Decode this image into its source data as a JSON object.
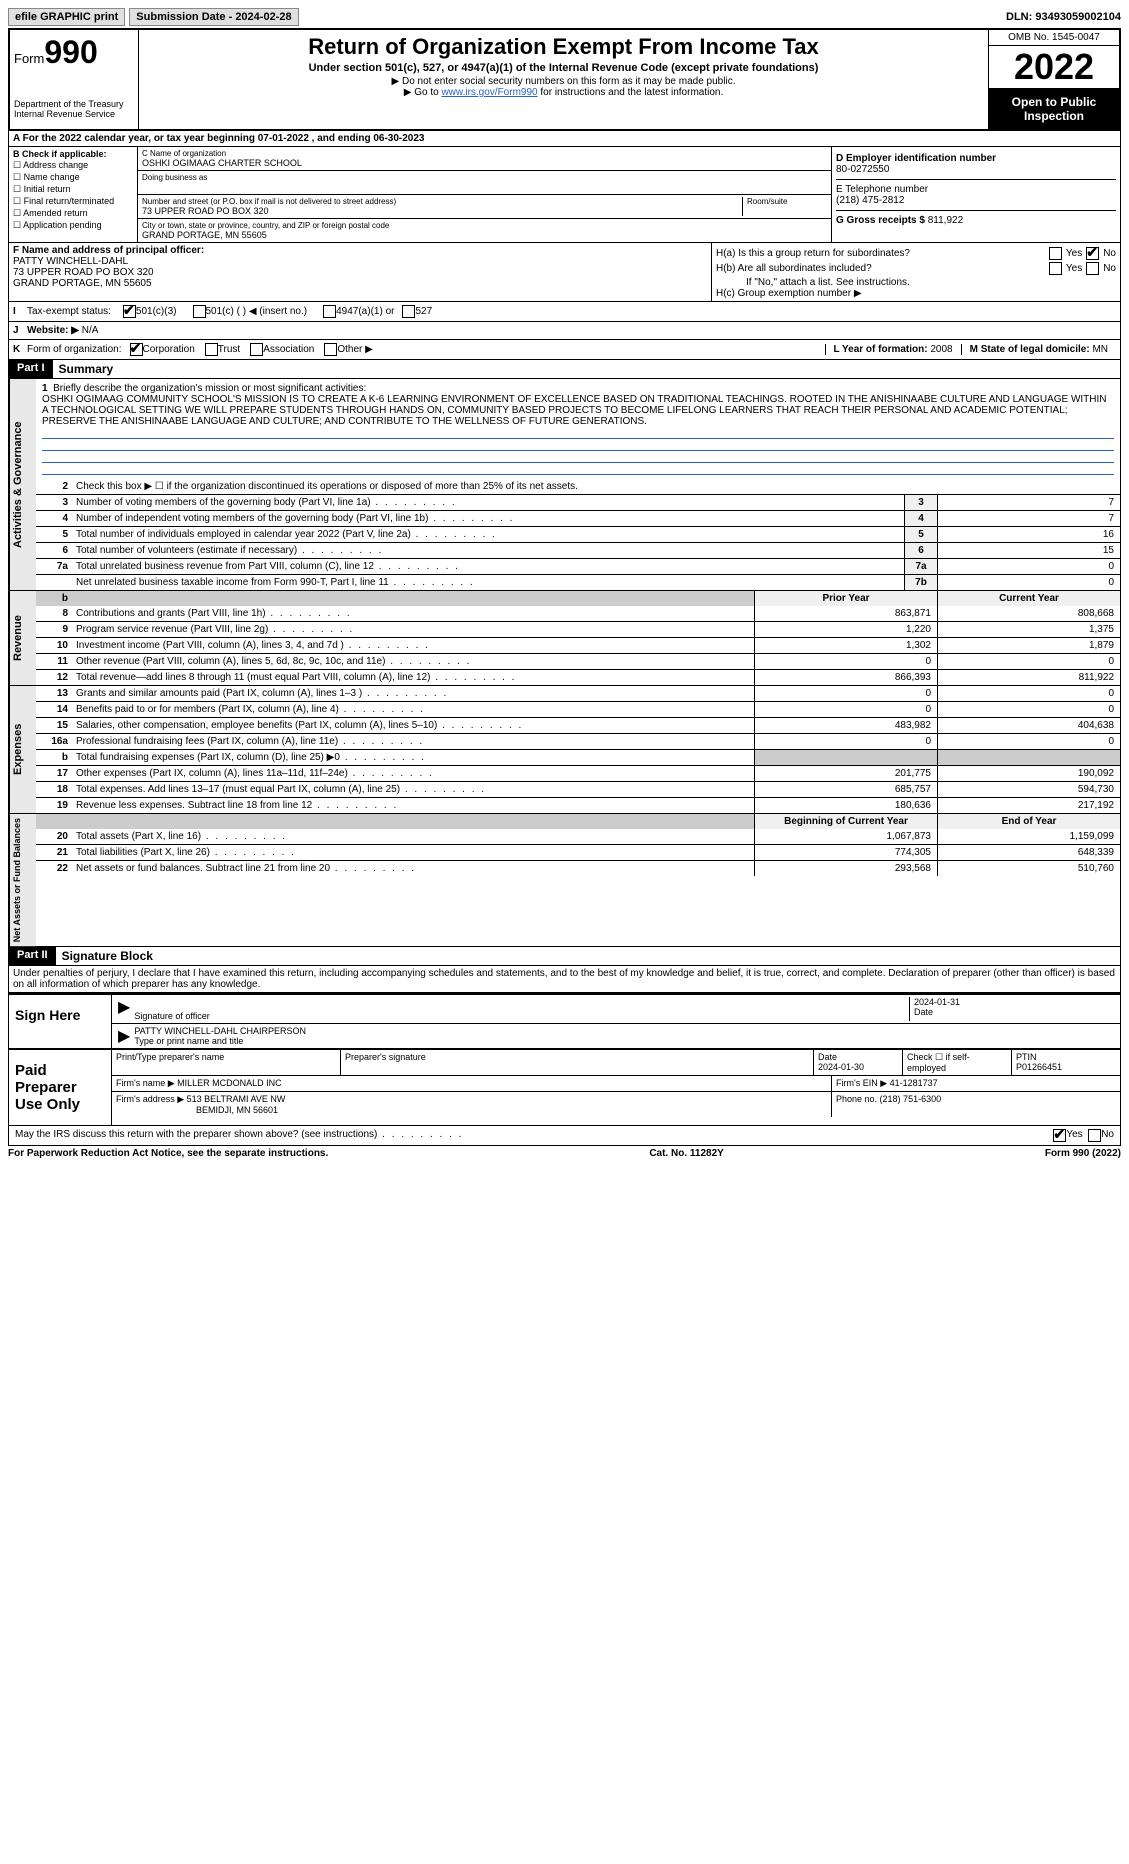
{
  "topbar": {
    "efile": "efile GRAPHIC print",
    "submission_label": "Submission Date - 2024-02-28",
    "dln": "DLN: 93493059002104"
  },
  "header": {
    "form_prefix": "Form",
    "form_num": "990",
    "dept": "Department of the Treasury\nInternal Revenue Service",
    "title": "Return of Organization Exempt From Income Tax",
    "subtitle": "Under section 501(c), 527, or 4947(a)(1) of the Internal Revenue Code (except private foundations)",
    "note1": "▶ Do not enter social security numbers on this form as it may be made public.",
    "note2_pre": "▶ Go to ",
    "note2_link": "www.irs.gov/Form990",
    "note2_post": " for instructions and the latest information.",
    "omb": "OMB No. 1545-0047",
    "year": "2022",
    "open": "Open to Public Inspection"
  },
  "period": {
    "text_a": "For the 2022 calendar year, or tax year beginning ",
    "begin": "07-01-2022",
    "text_b": "  , and ending ",
    "end": "06-30-2023"
  },
  "blockB": {
    "label": "B Check if applicable:",
    "opts": [
      "Address change",
      "Name change",
      "Initial return",
      "Final return/terminated",
      "Amended return",
      "Application pending"
    ]
  },
  "blockC": {
    "name_label": "C Name of organization",
    "name": "OSHKI OGIMAAG CHARTER SCHOOL",
    "dba_label": "Doing business as",
    "street_label": "Number and street (or P.O. box if mail is not delivered to street address)",
    "room_label": "Room/suite",
    "street": "73 UPPER ROAD PO BOX 320",
    "city_label": "City or town, state or province, country, and ZIP or foreign postal code",
    "city": "GRAND PORTAGE, MN  55605"
  },
  "blockD": {
    "ein_label": "D Employer identification number",
    "ein": "80-0272550",
    "tel_label": "E Telephone number",
    "tel": "(218) 475-2812",
    "gross_label": "G Gross receipts $ ",
    "gross": "811,922"
  },
  "blockF": {
    "label": "F  Name and address of principal officer:",
    "name": "PATTY WINCHELL-DAHL",
    "addr1": "73 UPPER ROAD PO BOX 320",
    "addr2": "GRAND PORTAGE, MN  55605"
  },
  "blockH": {
    "a": "H(a)  Is this a group return for subordinates?",
    "b": "H(b)  Are all subordinates included?",
    "bnote": "If \"No,\" attach a list. See instructions.",
    "c": "H(c)  Group exemption number ▶",
    "yes": "Yes",
    "no": "No"
  },
  "status": {
    "i": "I",
    "label": "Tax-exempt status:",
    "o1": "501(c)(3)",
    "o2": "501(c) (  ) ◀ (insert no.)",
    "o3": "4947(a)(1) or",
    "o4": "527"
  },
  "web": {
    "j": "J",
    "label": "Website: ▶",
    "val": "N/A"
  },
  "korg": {
    "k": "K",
    "label": "Form of organization:",
    "opts": [
      "Corporation",
      "Trust",
      "Association",
      "Other ▶"
    ],
    "l_label": "L Year of formation: ",
    "l_val": "2008",
    "m_label": "M State of legal domicile: ",
    "m_val": "MN"
  },
  "part1": {
    "tag": "Part I",
    "title": "Summary"
  },
  "mission": {
    "num": "1",
    "label": "Briefly describe the organization's mission or most significant activities:",
    "text": "OSHKI OGIMAAG COMMUNITY SCHOOL'S MISSION IS TO CREATE A K-6 LEARNING ENVIRONMENT OF EXCELLENCE BASED ON TRADITIONAL TEACHINGS. ROOTED IN THE ANISHINAABE CULTURE AND LANGUAGE WITHIN A TECHNOLOGICAL SETTING WE WILL PREPARE STUDENTS THROUGH HANDS ON, COMMUNITY BASED PROJECTS TO BECOME LIFELONG LEARNERS THAT REACH THEIR PERSONAL AND ACADEMIC POTENTIAL; PRESERVE THE ANISHINAABE LANGUAGE AND CULTURE; AND CONTRIBUTE TO THE WELLNESS OF FUTURE GENERATIONS."
  },
  "gov_lines": [
    {
      "n": "2",
      "t": "Check this box ▶ ☐  if the organization discontinued its operations or disposed of more than 25% of its net assets.",
      "box": "",
      "v": ""
    },
    {
      "n": "3",
      "t": "Number of voting members of the governing body (Part VI, line 1a)",
      "box": "3",
      "v": "7"
    },
    {
      "n": "4",
      "t": "Number of independent voting members of the governing body (Part VI, line 1b)",
      "box": "4",
      "v": "7"
    },
    {
      "n": "5",
      "t": "Total number of individuals employed in calendar year 2022 (Part V, line 2a)",
      "box": "5",
      "v": "16"
    },
    {
      "n": "6",
      "t": "Total number of volunteers (estimate if necessary)",
      "box": "6",
      "v": "15"
    },
    {
      "n": "7a",
      "t": "Total unrelated business revenue from Part VIII, column (C), line 12",
      "box": "7a",
      "v": "0"
    },
    {
      "n": "",
      "t": "Net unrelated business taxable income from Form 990-T, Part I, line 11",
      "box": "7b",
      "v": "0"
    }
  ],
  "rev_hdr": {
    "prior": "Prior Year",
    "curr": "Current Year"
  },
  "rev_lines": [
    {
      "n": "8",
      "t": "Contributions and grants (Part VIII, line 1h)",
      "p": "863,871",
      "c": "808,668"
    },
    {
      "n": "9",
      "t": "Program service revenue (Part VIII, line 2g)",
      "p": "1,220",
      "c": "1,375"
    },
    {
      "n": "10",
      "t": "Investment income (Part VIII, column (A), lines 3, 4, and 7d )",
      "p": "1,302",
      "c": "1,879"
    },
    {
      "n": "11",
      "t": "Other revenue (Part VIII, column (A), lines 5, 6d, 8c, 9c, 10c, and 11e)",
      "p": "0",
      "c": "0"
    },
    {
      "n": "12",
      "t": "Total revenue—add lines 8 through 11 (must equal Part VIII, column (A), line 12)",
      "p": "866,393",
      "c": "811,922"
    }
  ],
  "exp_lines": [
    {
      "n": "13",
      "t": "Grants and similar amounts paid (Part IX, column (A), lines 1–3 )",
      "p": "0",
      "c": "0"
    },
    {
      "n": "14",
      "t": "Benefits paid to or for members (Part IX, column (A), line 4)",
      "p": "0",
      "c": "0"
    },
    {
      "n": "15",
      "t": "Salaries, other compensation, employee benefits (Part IX, column (A), lines 5–10)",
      "p": "483,982",
      "c": "404,638"
    },
    {
      "n": "16a",
      "t": "Professional fundraising fees (Part IX, column (A), line 11e)",
      "p": "0",
      "c": "0"
    },
    {
      "n": "b",
      "t": "Total fundraising expenses (Part IX, column (D), line 25) ▶0",
      "p": "grey",
      "c": "grey"
    },
    {
      "n": "17",
      "t": "Other expenses (Part IX, column (A), lines 11a–11d, 11f–24e)",
      "p": "201,775",
      "c": "190,092"
    },
    {
      "n": "18",
      "t": "Total expenses. Add lines 13–17 (must equal Part IX, column (A), line 25)",
      "p": "685,757",
      "c": "594,730"
    },
    {
      "n": "19",
      "t": "Revenue less expenses. Subtract line 18 from line 12",
      "p": "180,636",
      "c": "217,192"
    }
  ],
  "na_hdr": {
    "prior": "Beginning of Current Year",
    "curr": "End of Year"
  },
  "na_lines": [
    {
      "n": "20",
      "t": "Total assets (Part X, line 16)",
      "p": "1,067,873",
      "c": "1,159,099"
    },
    {
      "n": "21",
      "t": "Total liabilities (Part X, line 26)",
      "p": "774,305",
      "c": "648,339"
    },
    {
      "n": "22",
      "t": "Net assets or fund balances. Subtract line 21 from line 20",
      "p": "293,568",
      "c": "510,760"
    }
  ],
  "part2": {
    "tag": "Part II",
    "title": "Signature Block"
  },
  "penalty": "Under penalties of perjury, I declare that I have examined this return, including accompanying schedules and statements, and to the best of my knowledge and belief, it is true, correct, and complete. Declaration of preparer (other than officer) is based on all information of which preparer has any knowledge.",
  "sign": {
    "here": "Sign Here",
    "sig_label": "Signature of officer",
    "date": "2024-01-31",
    "date_label": "Date",
    "name": "PATTY WINCHELL-DAHL  CHAIRPERSON",
    "name_label": "Type or print name and title"
  },
  "prep": {
    "label": "Paid Preparer Use Only",
    "h1": "Print/Type preparer's name",
    "h2": "Preparer's signature",
    "h3": "Date",
    "date": "2024-01-30",
    "h4": "Check ☐ if self-employed",
    "h5": "PTIN",
    "ptin": "P01266451",
    "firm_label": "Firm's name    ▶ ",
    "firm": "MILLER MCDONALD INC",
    "ein_label": "Firm's EIN ▶ ",
    "ein": "41-1281737",
    "addr_label": "Firm's address ▶ ",
    "addr": "513 BELTRAMI AVE NW",
    "addr2": "BEMIDJI, MN  56601",
    "phone_label": "Phone no. ",
    "phone": "(218) 751-6300"
  },
  "irs_q": "May the IRS discuss this return with the preparer shown above? (see instructions)",
  "footer": {
    "left": "For Paperwork Reduction Act Notice, see the separate instructions.",
    "mid": "Cat. No. 11282Y",
    "right": "Form 990 (2022)"
  },
  "vlabels": {
    "gov": "Activities & Governance",
    "rev": "Revenue",
    "exp": "Expenses",
    "na": "Net Assets or Fund Balances"
  }
}
